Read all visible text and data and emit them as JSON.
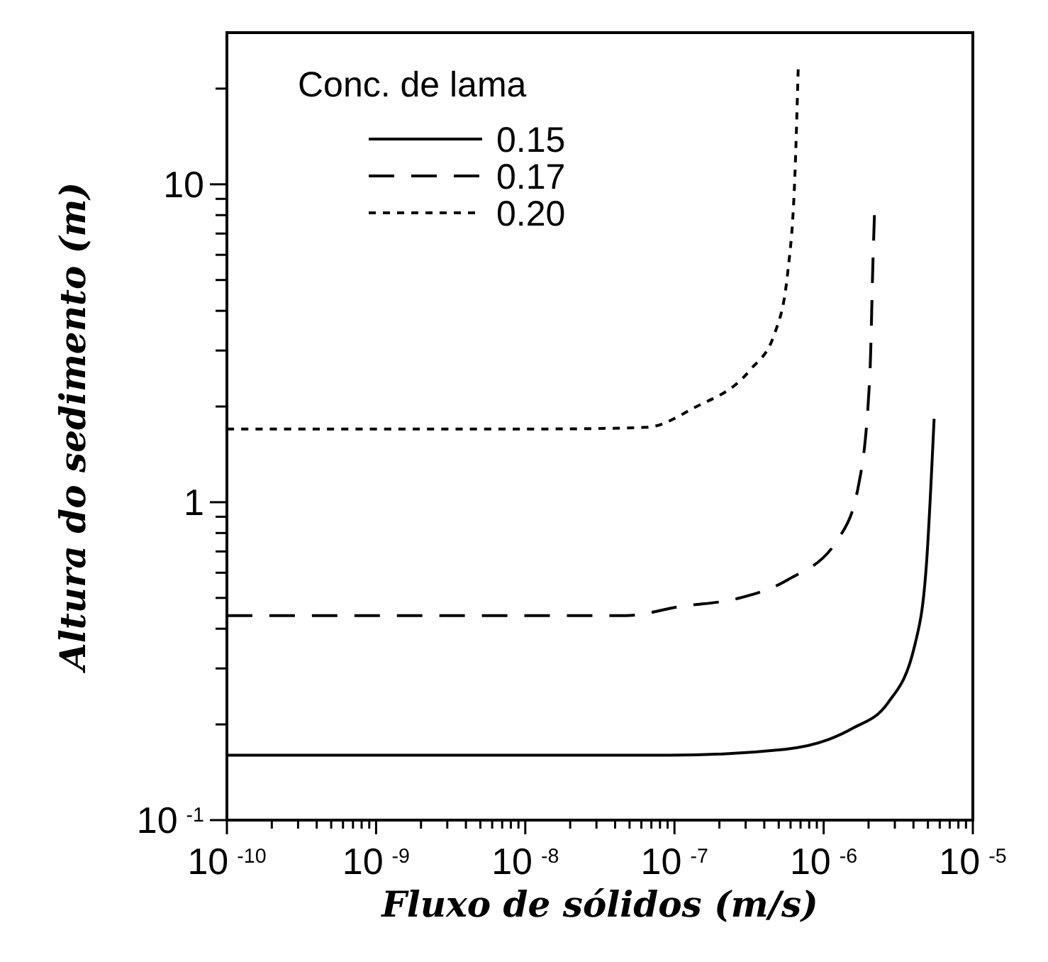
{
  "chart_data": {
    "type": "line",
    "xlabel": "Fluxo de sólidos (m/s)",
    "ylabel": "Altura do sedimento (m)",
    "legend_title": "Conc. de lama",
    "legend": "top left",
    "log": "xy",
    "grid": false,
    "xlim": [
      1e-10,
      1e-05
    ],
    "ylim": [
      0.1,
      30
    ],
    "xticks": [
      {
        "value": 1e-10,
        "label": "10$^{-10}$"
      },
      {
        "value": 2e-10,
        "label": null
      },
      {
        "value": 3e-10,
        "label": null
      },
      {
        "value": 4e-10,
        "label": null
      },
      {
        "value": 5e-10,
        "label": null
      },
      {
        "value": 6e-10,
        "label": null
      },
      {
        "value": 7e-10,
        "label": null
      },
      {
        "value": 8e-10,
        "label": null
      },
      {
        "value": 9e-10,
        "label": null
      },
      {
        "value": 1e-09,
        "label": "10$^{-9}$"
      },
      {
        "value": 2e-09,
        "label": null
      },
      {
        "value": 3e-09,
        "label": null
      },
      {
        "value": 4e-09,
        "label": null
      },
      {
        "value": 5e-09,
        "label": null
      },
      {
        "value": 6e-09,
        "label": null
      },
      {
        "value": 7e-09,
        "label": null
      },
      {
        "value": 8e-09,
        "label": null
      },
      {
        "value": 9e-09,
        "label": null
      },
      {
        "value": 1e-08,
        "label": "10$^{-8}$"
      },
      {
        "value": 2e-08,
        "label": null
      },
      {
        "value": 3e-08,
        "label": null
      },
      {
        "value": 4e-08,
        "label": null
      },
      {
        "value": 5e-08,
        "label": null
      },
      {
        "value": 6e-08,
        "label": null
      },
      {
        "value": 7e-08,
        "label": null
      },
      {
        "value": 8e-08,
        "label": null
      },
      {
        "value": 9e-08,
        "label": null
      },
      {
        "value": 1e-07,
        "label": "10$^{-7}$"
      },
      {
        "value": 2e-07,
        "label": null
      },
      {
        "value": 3e-07,
        "label": null
      },
      {
        "value": 4e-07,
        "label": null
      },
      {
        "value": 5e-07,
        "label": null
      },
      {
        "value": 6e-07,
        "label": null
      },
      {
        "value": 7e-07,
        "label": null
      },
      {
        "value": 8e-07,
        "label": null
      },
      {
        "value": 9e-07,
        "label": null
      },
      {
        "value": 1e-06,
        "label": "10$^{-6}$"
      },
      {
        "value": 2e-06,
        "label": null
      },
      {
        "value": 3e-06,
        "label": null
      },
      {
        "value": 4e-06,
        "label": null
      },
      {
        "value": 5e-06,
        "label": null
      },
      {
        "value": 6e-06,
        "label": null
      },
      {
        "value": 7e-06,
        "label": null
      },
      {
        "value": 8e-06,
        "label": null
      },
      {
        "value": 9e-06,
        "label": null
      },
      {
        "value": 1e-05,
        "label": "10$^{-5}$"
      }
    ],
    "yticks": [
      {
        "value": 0.1,
        "label": "10$^{-1}$"
      },
      {
        "value": 0.2,
        "label": null
      },
      {
        "value": 0.3,
        "label": null
      },
      {
        "value": 0.4,
        "label": null
      },
      {
        "value": 0.5,
        "label": null
      },
      {
        "value": 0.6,
        "label": null
      },
      {
        "value": 0.7,
        "label": null
      },
      {
        "value": 0.8,
        "label": null
      },
      {
        "value": 0.9,
        "label": null
      },
      {
        "value": 1,
        "label": "1"
      },
      {
        "value": 2,
        "label": null
      },
      {
        "value": 3,
        "label": null
      },
      {
        "value": 4,
        "label": null
      },
      {
        "value": 5,
        "label": null
      },
      {
        "value": 6,
        "label": null
      },
      {
        "value": 7,
        "label": null
      },
      {
        "value": 8,
        "label": null
      },
      {
        "value": 9,
        "label": null
      },
      {
        "value": 10,
        "label": "10"
      },
      {
        "value": 20,
        "label": null
      }
    ],
    "series": [
      {
        "name": "0.15",
        "color": "#000000",
        "line_style": "solid",
        "x": [
          1e-10,
          1.4e-08,
          9.3e-08,
          5.5e-07,
          1.07e-06,
          1.55e-06,
          2.7e-06,
          4.1e-06,
          4.9e-06,
          5.5e-06
        ],
        "values": [
          0.16,
          0.16,
          0.16,
          0.167,
          0.179,
          0.194,
          0.234,
          0.358,
          0.65,
          1.83
        ]
      },
      {
        "name": "0.17",
        "color": "#000000",
        "line_style": "dashed",
        "x": [
          1e-10,
          1.7e-08,
          4.7e-08,
          1.1e-07,
          2.75e-07,
          5.75e-07,
          1.26e-06,
          1.7e-06,
          2.04e-06,
          2.14e-06,
          2.19e-06
        ],
        "values": [
          0.44,
          0.44,
          0.44,
          0.47,
          0.5,
          0.57,
          0.77,
          1.11,
          2.5,
          5.7,
          8.0
        ]
      },
      {
        "name": "0.20",
        "color": "#000000",
        "line_style": "dotted",
        "x": [
          1e-10,
          1.4e-08,
          6.5e-08,
          1.35e-07,
          3.2e-07,
          4.7e-07,
          5.75e-07,
          6.45e-07,
          6.75e-07
        ],
        "values": [
          1.7,
          1.7,
          1.72,
          1.98,
          2.6,
          3.4,
          5.3,
          11.4,
          23
        ]
      }
    ]
  }
}
